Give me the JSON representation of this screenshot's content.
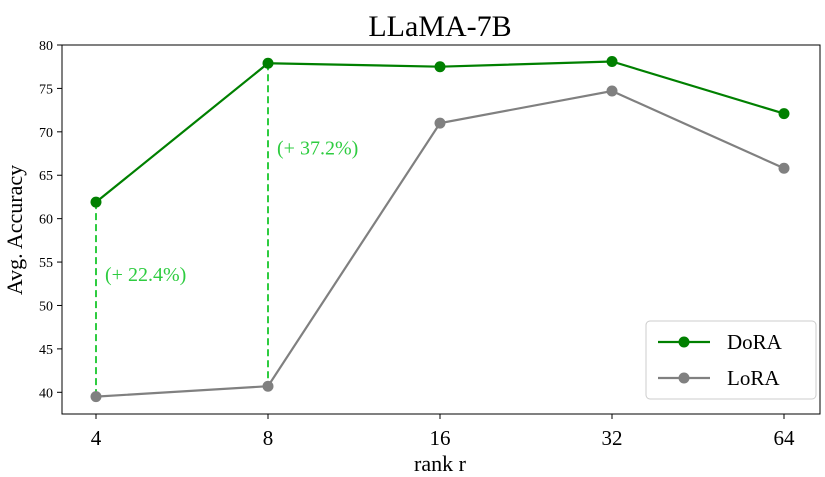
{
  "chart_data": {
    "type": "line",
    "title": "LLaMA-7B",
    "xlabel": "rank r",
    "ylabel": "Avg. Accuracy",
    "categories": [
      "4",
      "8",
      "16",
      "32",
      "64"
    ],
    "ylim": [
      37.5,
      80
    ],
    "yticks": [
      40,
      45,
      50,
      55,
      60,
      65,
      70,
      75,
      80
    ],
    "grid": false,
    "legend_position": "bottom-right",
    "series": [
      {
        "name": "DoRA",
        "color": "#008000",
        "values": [
          61.9,
          77.9,
          77.5,
          78.1,
          72.1
        ]
      },
      {
        "name": "LoRA",
        "color": "#808080",
        "values": [
          39.5,
          40.7,
          71.0,
          74.7,
          65.8
        ]
      }
    ],
    "annotations": [
      {
        "category_index": 0,
        "text": "(+ 22.4%)",
        "color": "#2ecc40"
      },
      {
        "category_index": 1,
        "text": "(+ 37.2%)",
        "color": "#2ecc40"
      }
    ]
  }
}
